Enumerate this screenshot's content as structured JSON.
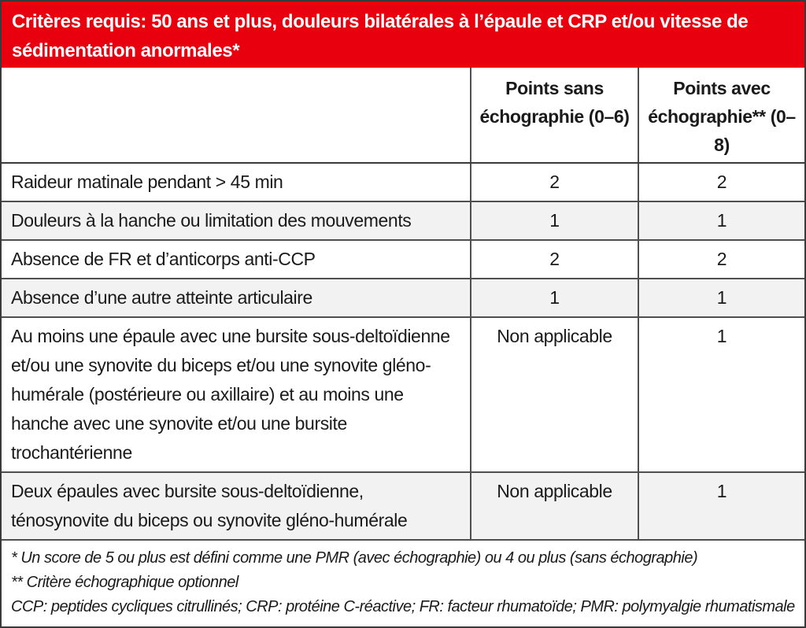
{
  "banner": {
    "text": "Critères requis: 50 ans et plus, douleurs bilatérales à l’épaule et CRP et/ou vitesse de sédimentation anormales*"
  },
  "table": {
    "headers": {
      "criterion": "",
      "points_sans": "Points sans échographie (0–6)",
      "points_avec": "Points avec échographie** (0–8)"
    },
    "rows": [
      {
        "criterion": "Raideur matinale pendant > 45 min",
        "points_sans": "2",
        "points_avec": "2"
      },
      {
        "criterion": "Douleurs à la hanche ou limitation des mouvements",
        "points_sans": "1",
        "points_avec": "1"
      },
      {
        "criterion": "Absence de FR et d’anticorps anti-CCP",
        "points_sans": "2",
        "points_avec": "2"
      },
      {
        "criterion": "Absence d’une autre atteinte articulaire",
        "points_sans": "1",
        "points_avec": "1"
      },
      {
        "criterion": "Au moins une épaule avec une bursite sous-deltoïdienne et/ou une synovite du biceps et/ou une synovite gléno-humérale (postérieure ou axillaire) et au moins une hanche avec une synovite et/ou une bursite trochantérienne",
        "points_sans": "Non applicable",
        "points_avec": "1"
      },
      {
        "criterion": "Deux épaules avec bursite sous-deltoïdienne, ténosynovite du biceps ou synovite gléno-humérale",
        "points_sans": "Non applicable",
        "points_avec": "1"
      }
    ]
  },
  "footnotes": [
    "* Un score de 5 ou plus est défini comme une PMR (avec échographie) ou 4 ou plus (sans échographie)",
    "** Critère échographique optionnel",
    "CCP: peptides cycliques citrullinés; CRP: protéine C-réactive; FR: facteur rhumatoïde; PMR: polymyalgie rhumatismale"
  ],
  "colors": {
    "banner_red": "#e8000f",
    "row_alt_gray": "#f2f2f2",
    "border_dark": "#3a3a3a",
    "text": "#1a1a1a"
  }
}
